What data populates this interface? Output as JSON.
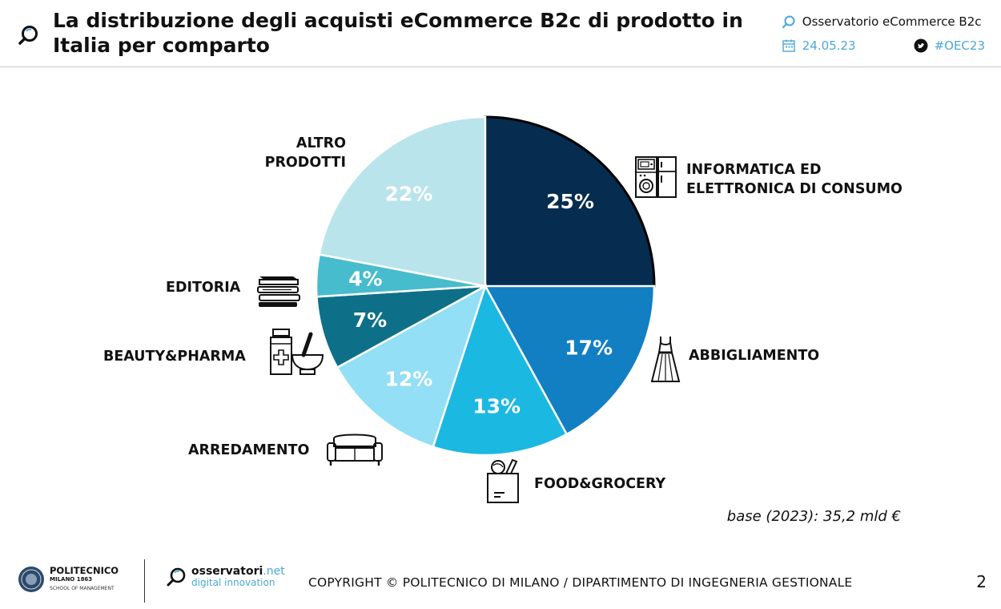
{
  "header": {
    "title": "La distribuzione degli acquisti eCommerce B2c di prodotto in Italia per comparto",
    "source": "Osservatorio eCommerce B2c",
    "date": "24.05.23",
    "hashtag": "#OEC23",
    "accent_color": "#4aa8d8"
  },
  "chart_data": {
    "type": "pie",
    "title": "",
    "start": "12 o'clock, clockwise",
    "slices": [
      {
        "label": "INFORMATICA ED\nELETTRONICA DI CONSUMO",
        "value": 25,
        "value_label": "25%",
        "color": "#062c4f",
        "icon": "appliances-icon"
      },
      {
        "label": "ABBIGLIAMENTO",
        "value": 17,
        "value_label": "17%",
        "color": "#127fc3",
        "icon": "dress-icon"
      },
      {
        "label": "FOOD&GROCERY",
        "value": 13,
        "value_label": "13%",
        "color": "#1bb8e2",
        "icon": "grocery-bag-icon"
      },
      {
        "label": "ARREDAMENTO",
        "value": 12,
        "value_label": "12%",
        "color": "#93dff5",
        "icon": "sofa-icon"
      },
      {
        "label": "BEAUTY&PHARMA",
        "value": 7,
        "value_label": "7%",
        "color": "#0e7088",
        "icon": "pharma-icon"
      },
      {
        "label": "EDITORIA",
        "value": 4,
        "value_label": "4%",
        "color": "#47bccc",
        "icon": "books-icon"
      },
      {
        "label": "ALTRO\nPRODOTTI",
        "value": 22,
        "value_label": "22%",
        "color": "#b9e4ec",
        "icon": ""
      }
    ]
  },
  "note": "base (2023): 35,2 mld €",
  "footer": {
    "logo1_line1": "POLITECNICO",
    "logo1_line2": "MILANO 1863",
    "logo1_line3": "SCHOOL OF MANAGEMENT",
    "logo2_name_a": "osservatori",
    "logo2_name_b": ".net",
    "logo2_sub": "digital innovation",
    "copyright": "COPYRIGHT © POLITECNICO DI MILANO / DIPARTIMENTO DI INGEGNERIA GESTIONALE",
    "page_number": "2"
  }
}
